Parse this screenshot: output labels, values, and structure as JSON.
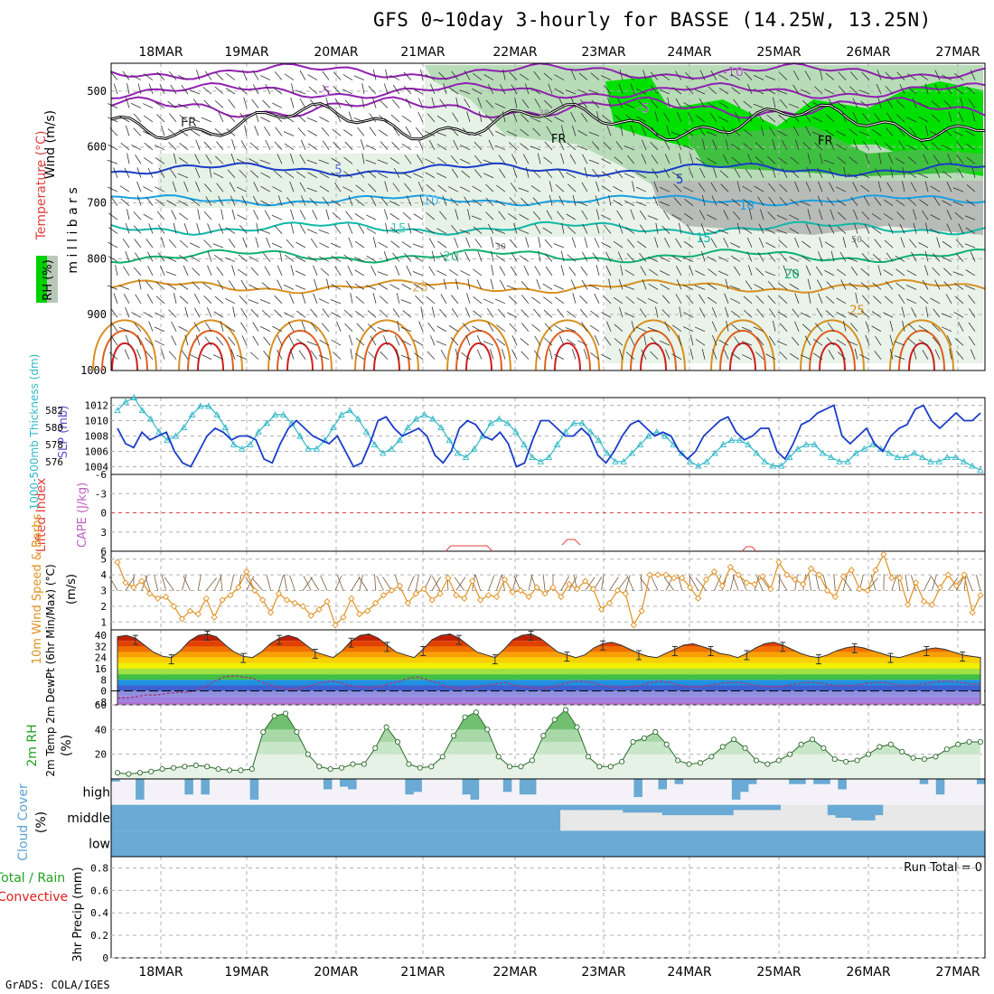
{
  "title": "GFS 0~10day 3-hourly for BASSE (14.25W, 13.25N)",
  "footer": "GrADS: COLA/IGES",
  "dates": [
    "18MAR",
    "19MAR",
    "20MAR",
    "21MAR",
    "22MAR",
    "23MAR",
    "24MAR",
    "25MAR",
    "26MAR",
    "27MAR"
  ],
  "colors": {
    "grid": "#b0b0b0",
    "rh_green": "#00e000",
    "slp": "#1a3cc8",
    "thickness": "#30b8c8",
    "wind10m": "#e09020",
    "cloud": "#6aaad4",
    "rh2m": "#3a9a3a"
  },
  "panels": {
    "upper": {
      "ylabel_wind": "Wind (m/s)",
      "ylabel_temp": "Temperature (°C)",
      "ylabel_rh": "RH (%)",
      "ylabel_mb": "m i l l i b a r s",
      "yticks": [
        "500",
        "600",
        "700",
        "800",
        "900",
        "1000"
      ],
      "contour_labels": [
        "FR",
        "FR",
        "FR",
        "-5",
        "-5",
        "-10",
        "5",
        "5",
        "10",
        "10",
        "15",
        "15",
        "20",
        "20",
        "25",
        "25",
        "30",
        "30",
        "30",
        "50"
      ]
    },
    "slp": {
      "ylabel_left": "1000-500mb Thickness (dm)",
      "ylabel_right": "SLP (mb)",
      "thick_ticks": [
        "582",
        "580",
        "578",
        "576"
      ],
      "slp_ticks": [
        "1012",
        "1010",
        "1008",
        "1006",
        "1004"
      ]
    },
    "cape": {
      "ylabel_left": "Lifted Index",
      "ylabel_right": "CAPE (J/kg)",
      "yticks": [
        "-6",
        "-3",
        "0",
        "3",
        "6"
      ]
    },
    "wind10m": {
      "ylabel": "10m Wind Speed & Barbs",
      "unit": "(m/s)",
      "yticks": [
        "5",
        "4",
        "3",
        "2",
        "1"
      ]
    },
    "temp2m": {
      "ylabel": "2m Temp 2m DewPt (6hr Min/Max) (°C)",
      "yticks": [
        "40",
        "32",
        "24",
        "16",
        "8",
        "0",
        "-8"
      ]
    },
    "rh2m": {
      "ylabel": "2m RH",
      "unit": "(%)",
      "yticks": [
        "60",
        "40",
        "20"
      ]
    },
    "cloud": {
      "ylabel": "Cloud Cover",
      "unit": "(%)",
      "levels": [
        "high",
        "middle",
        "low"
      ]
    },
    "precip": {
      "ylabel_total": "Total / Rain",
      "ylabel_conv": "Convective",
      "unit": "3hr Precip (mm)",
      "yticks": [
        "0.8",
        "0.6",
        "0.4",
        "0.2",
        "0"
      ],
      "run_total": "Run Total = 0"
    }
  },
  "chart_data": [
    {
      "type": "line",
      "name": "slp_mb",
      "ylim": [
        1003,
        1013
      ],
      "values": [
        1009,
        1007,
        1006.5,
        1008.5,
        1007.5,
        1008,
        1008.5,
        1006,
        1004.5,
        1004,
        1006,
        1008,
        1009,
        1008.5,
        1007.5,
        1008,
        1008,
        1007.5,
        1005,
        1004.5,
        1007,
        1009,
        1010,
        1009,
        1008,
        1007.5,
        1007,
        1008,
        1006,
        1004,
        1004.5,
        1007,
        1010,
        1010.5,
        1009,
        1008,
        1008.5,
        1009,
        1008,
        1005.5,
        1004.5,
        1006,
        1009,
        1010,
        1009.5,
        1008,
        1007.5,
        1008.5,
        1007,
        1004,
        1004.5,
        1007.5,
        1010,
        1010,
        1009,
        1008,
        1008,
        1009,
        1008,
        1005.5,
        1004.5,
        1006,
        1008,
        1009.5,
        1010,
        1009,
        1008,
        1008.5,
        1008,
        1006,
        1005,
        1006,
        1008,
        1009,
        1010,
        1010.5,
        1008.5,
        1007.5,
        1008,
        1009,
        1009,
        1006,
        1005,
        1007,
        1009.5,
        1010,
        1011,
        1011.5,
        1012,
        1008,
        1007,
        1008,
        1009,
        1007,
        1006,
        1008,
        1009,
        1009.5,
        1011.5,
        1012,
        1010,
        1009,
        1010,
        1011,
        1010,
        1010,
        1011
      ]
    },
    {
      "type": "line",
      "name": "thickness_dm",
      "ylim": [
        574.5,
        583.5
      ],
      "values": [
        582,
        583,
        583.5,
        582,
        581,
        579.5,
        578.5,
        579,
        580,
        581.5,
        582.5,
        582.5,
        581.5,
        580,
        578,
        577.5,
        578,
        579.5,
        580.5,
        581.5,
        581.5,
        580.5,
        579,
        577.5,
        577.5,
        578.5,
        580,
        581.5,
        582,
        581,
        579.5,
        578,
        577,
        577.5,
        578.5,
        580,
        581,
        581.5,
        581,
        580,
        578.5,
        577,
        576.5,
        577.5,
        579,
        580.5,
        581,
        580.5,
        579.5,
        578,
        576.5,
        576,
        576.5,
        578,
        579.5,
        580.5,
        580.5,
        579.5,
        578.5,
        577,
        576,
        576,
        577,
        578,
        579,
        579.5,
        579,
        578,
        577,
        576,
        575.5,
        576,
        577,
        578,
        578.5,
        578.5,
        578,
        577,
        576,
        575.5,
        575.5,
        576.5,
        577.5,
        578,
        578,
        577,
        576.5,
        576,
        576,
        577,
        577.5,
        578,
        577.5,
        577,
        576.5,
        576.5,
        577,
        576.5,
        576,
        576,
        576.5,
        576.5,
        576,
        575.5,
        575
      ]
    },
    {
      "type": "line",
      "name": "wind10m_ms",
      "ylim": [
        0.5,
        5.5
      ],
      "values": [
        4.8,
        3.5,
        3.2,
        3.6,
        2.8,
        2.5,
        2.6,
        2.0,
        1.2,
        1.7,
        1.5,
        2.5,
        1.3,
        2.4,
        2.7,
        3.2,
        4.2,
        3.0,
        2.4,
        1.6,
        2.8,
        2.4,
        2.2,
        2.0,
        1.4,
        1.8,
        2.3,
        0.8,
        1.3,
        2.5,
        1.5,
        1.7,
        2.2,
        2.7,
        3.0,
        3.3,
        2.2,
        2.8,
        3.1,
        2.4,
        2.8,
        3.8,
        2.7,
        2.5,
        3.6,
        2.4,
        2.7,
        2.6,
        3.7,
        2.9,
        3.0,
        2.6,
        3.2,
        2.8,
        3.2,
        2.6,
        3.4,
        3.1,
        3.6,
        3.1,
        1.8,
        2.2,
        3.0,
        2.8,
        0.8,
        1.7,
        4.0,
        4.0,
        4.0,
        3.8,
        3.8,
        3.2,
        2.5,
        3.7,
        4.2,
        3.3,
        4.5,
        4.0,
        3.5,
        3.4,
        3.9,
        3.1,
        4.8,
        4.0,
        3.7,
        3.4,
        4.4,
        4.0,
        3.0,
        2.6,
        3.9,
        4.3,
        3.1,
        3.0,
        4.3,
        5.3,
        3.8,
        3.8,
        2.1,
        3.5,
        2.3,
        2.1,
        3.2,
        4.0,
        3.3,
        4.0,
        1.6,
        2.7
      ]
    },
    {
      "type": "area",
      "name": "temp2m_c",
      "ylim": [
        -10,
        44
      ],
      "values": [
        39,
        40,
        38,
        33,
        28,
        25,
        24,
        29,
        36,
        40,
        41,
        39,
        33,
        28,
        25,
        24,
        28,
        34,
        38,
        40,
        38,
        33,
        28,
        26,
        24,
        29,
        36,
        40,
        41,
        38,
        33,
        28,
        26,
        24,
        30,
        37,
        40,
        41,
        38,
        33,
        28,
        26,
        24,
        30,
        37,
        40,
        41,
        38,
        33,
        28,
        26,
        24,
        26,
        31,
        34,
        35,
        33,
        30,
        27,
        25,
        24,
        27,
        30,
        33,
        34,
        32,
        30,
        27,
        26,
        24,
        27,
        31,
        34,
        35,
        33,
        30,
        27,
        25,
        24,
        26,
        29,
        31,
        32,
        31,
        29,
        27,
        25,
        24,
        26,
        28,
        30,
        31,
        30,
        28,
        26,
        25,
        24
      ]
    },
    {
      "type": "line",
      "name": "dewpt2m_c",
      "ylim": [
        -10,
        44
      ],
      "values": [
        -5,
        -5,
        -4,
        -3,
        -3,
        -2,
        -1,
        -1,
        0,
        3,
        7,
        10,
        11,
        10,
        9,
        6,
        4,
        2,
        1,
        2,
        4,
        6,
        7,
        6,
        4,
        3,
        2,
        3,
        5,
        7,
        9,
        10,
        8,
        6,
        3,
        2,
        2,
        3,
        4,
        5,
        6,
        4,
        3,
        2,
        2,
        3,
        5,
        7,
        7,
        6,
        4,
        3,
        2,
        3,
        4,
        6,
        7,
        6,
        4,
        3,
        3,
        4,
        5,
        6,
        6,
        5,
        4,
        3,
        3,
        4,
        5,
        6,
        6,
        5,
        4,
        4,
        4,
        5,
        6,
        6,
        5,
        4,
        4,
        5,
        6,
        7,
        7,
        6,
        5,
        5
      ]
    },
    {
      "type": "area",
      "name": "rh2m_pct",
      "ylim": [
        0,
        60
      ],
      "values": [
        5,
        4,
        5,
        6,
        8,
        9,
        10,
        11,
        10,
        8,
        7,
        7,
        8,
        38,
        51,
        53,
        38,
        20,
        10,
        8,
        9,
        12,
        12,
        25,
        42,
        30,
        12,
        9,
        10,
        18,
        35,
        50,
        54,
        40,
        18,
        10,
        10,
        15,
        35,
        48,
        56,
        42,
        18,
        10,
        10,
        14,
        30,
        33,
        38,
        28,
        15,
        12,
        13,
        18,
        26,
        32,
        25,
        15,
        12,
        15,
        20,
        28,
        32,
        25,
        16,
        14,
        15,
        20,
        26,
        28,
        22,
        17,
        16,
        18,
        24,
        28,
        30,
        30
      ]
    },
    {
      "type": "bar",
      "name": "cloud_high_pct",
      "ylim": [
        0,
        100
      ],
      "values": [
        10,
        0,
        0,
        80,
        0,
        0,
        0,
        0,
        0,
        60,
        0,
        60,
        0,
        0,
        0,
        0,
        0,
        80,
        0,
        0,
        0,
        0,
        0,
        0,
        0,
        0,
        40,
        0,
        30,
        40,
        0,
        0,
        0,
        0,
        0,
        0,
        60,
        50,
        0,
        0,
        0,
        0,
        0,
        60,
        80,
        0,
        0,
        0,
        50,
        0,
        60,
        60,
        0,
        0,
        0,
        0,
        0,
        0,
        0,
        0,
        0,
        0,
        0,
        0,
        70,
        0,
        0,
        40,
        0,
        20,
        0,
        0,
        0,
        0,
        0,
        0,
        80,
        50,
        20,
        0,
        0,
        0,
        0,
        20,
        20,
        0,
        20,
        20,
        0,
        40,
        0,
        0,
        0,
        0,
        0,
        0,
        0,
        0,
        0,
        20,
        0,
        60,
        0,
        0,
        0,
        0,
        20
      ]
    },
    {
      "type": "bar",
      "name": "cloud_middle_pct",
      "ylim": [
        0,
        100
      ],
      "values": [
        100,
        100,
        100,
        100,
        100,
        100,
        100,
        100,
        100,
        100,
        100,
        100,
        100,
        100,
        100,
        100,
        100,
        100,
        100,
        100,
        100,
        100,
        100,
        100,
        100,
        100,
        100,
        100,
        100,
        100,
        100,
        100,
        100,
        100,
        100,
        100,
        100,
        100,
        100,
        100,
        100,
        100,
        100,
        100,
        100,
        100,
        100,
        100,
        100,
        100,
        100,
        100,
        100,
        100,
        100,
        100,
        100,
        20,
        20,
        20,
        20,
        20,
        20,
        20,
        20,
        30,
        30,
        30,
        30,
        30,
        40,
        40,
        40,
        40,
        40,
        40,
        40,
        40,
        40,
        20,
        20,
        20,
        20,
        20,
        20,
        0,
        0,
        0,
        0,
        0,
        0,
        40,
        50,
        50,
        60,
        60,
        60,
        40,
        0,
        0,
        0,
        0,
        0,
        0,
        0,
        0,
        0,
        0,
        0,
        0,
        0
      ]
    },
    {
      "type": "bar",
      "name": "precip_3hr_mm",
      "ylim": [
        0,
        0.9
      ],
      "values": [
        0,
        0,
        0,
        0,
        0,
        0,
        0,
        0,
        0,
        0
      ]
    }
  ]
}
